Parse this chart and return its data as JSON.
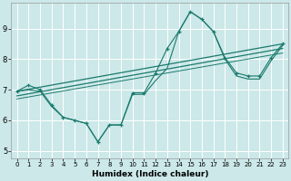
{
  "xlabel": "Humidex (Indice chaleur)",
  "bg_color": "#cce8e8",
  "grid_color": "#ffffff",
  "line_color": "#1a7a6e",
  "xlim": [
    -0.5,
    23.5
  ],
  "ylim": [
    4.75,
    9.85
  ],
  "xticks": [
    0,
    1,
    2,
    3,
    4,
    5,
    6,
    7,
    8,
    9,
    10,
    11,
    12,
    13,
    14,
    15,
    16,
    17,
    18,
    19,
    20,
    21,
    22,
    23
  ],
  "yticks": [
    5,
    6,
    7,
    8,
    9
  ],
  "series_main": {
    "x": [
      0,
      1,
      2,
      3,
      4,
      5,
      6,
      7,
      8,
      9,
      10,
      11,
      12,
      13,
      14,
      15,
      16,
      17,
      18,
      19,
      20,
      21,
      22,
      23
    ],
    "y": [
      6.95,
      7.15,
      7.0,
      6.5,
      6.1,
      6.0,
      5.9,
      5.3,
      5.85,
      5.85,
      6.9,
      6.9,
      7.55,
      8.35,
      8.9,
      9.55,
      9.3,
      8.9,
      8.05,
      7.55,
      7.45,
      7.45,
      8.05,
      8.5
    ]
  },
  "series_line2": {
    "x": [
      0,
      1,
      2,
      3,
      4,
      5,
      6,
      7,
      8,
      9,
      10,
      11,
      12,
      13,
      14,
      15,
      16,
      17,
      18,
      19,
      20,
      21,
      22,
      23
    ],
    "y": [
      6.95,
      7.0,
      6.95,
      6.45,
      6.1,
      6.0,
      5.9,
      5.3,
      5.85,
      5.85,
      6.85,
      6.85,
      7.3,
      7.7,
      8.9,
      9.55,
      9.3,
      8.9,
      8.0,
      7.45,
      7.35,
      7.35,
      7.95,
      8.45
    ]
  },
  "trend1": {
    "x": [
      0,
      23
    ],
    "y": [
      6.95,
      8.5
    ]
  },
  "trend2": {
    "x": [
      0,
      23
    ],
    "y": [
      6.8,
      8.35
    ]
  },
  "trend3": {
    "x": [
      0,
      23
    ],
    "y": [
      6.7,
      8.2
    ]
  }
}
